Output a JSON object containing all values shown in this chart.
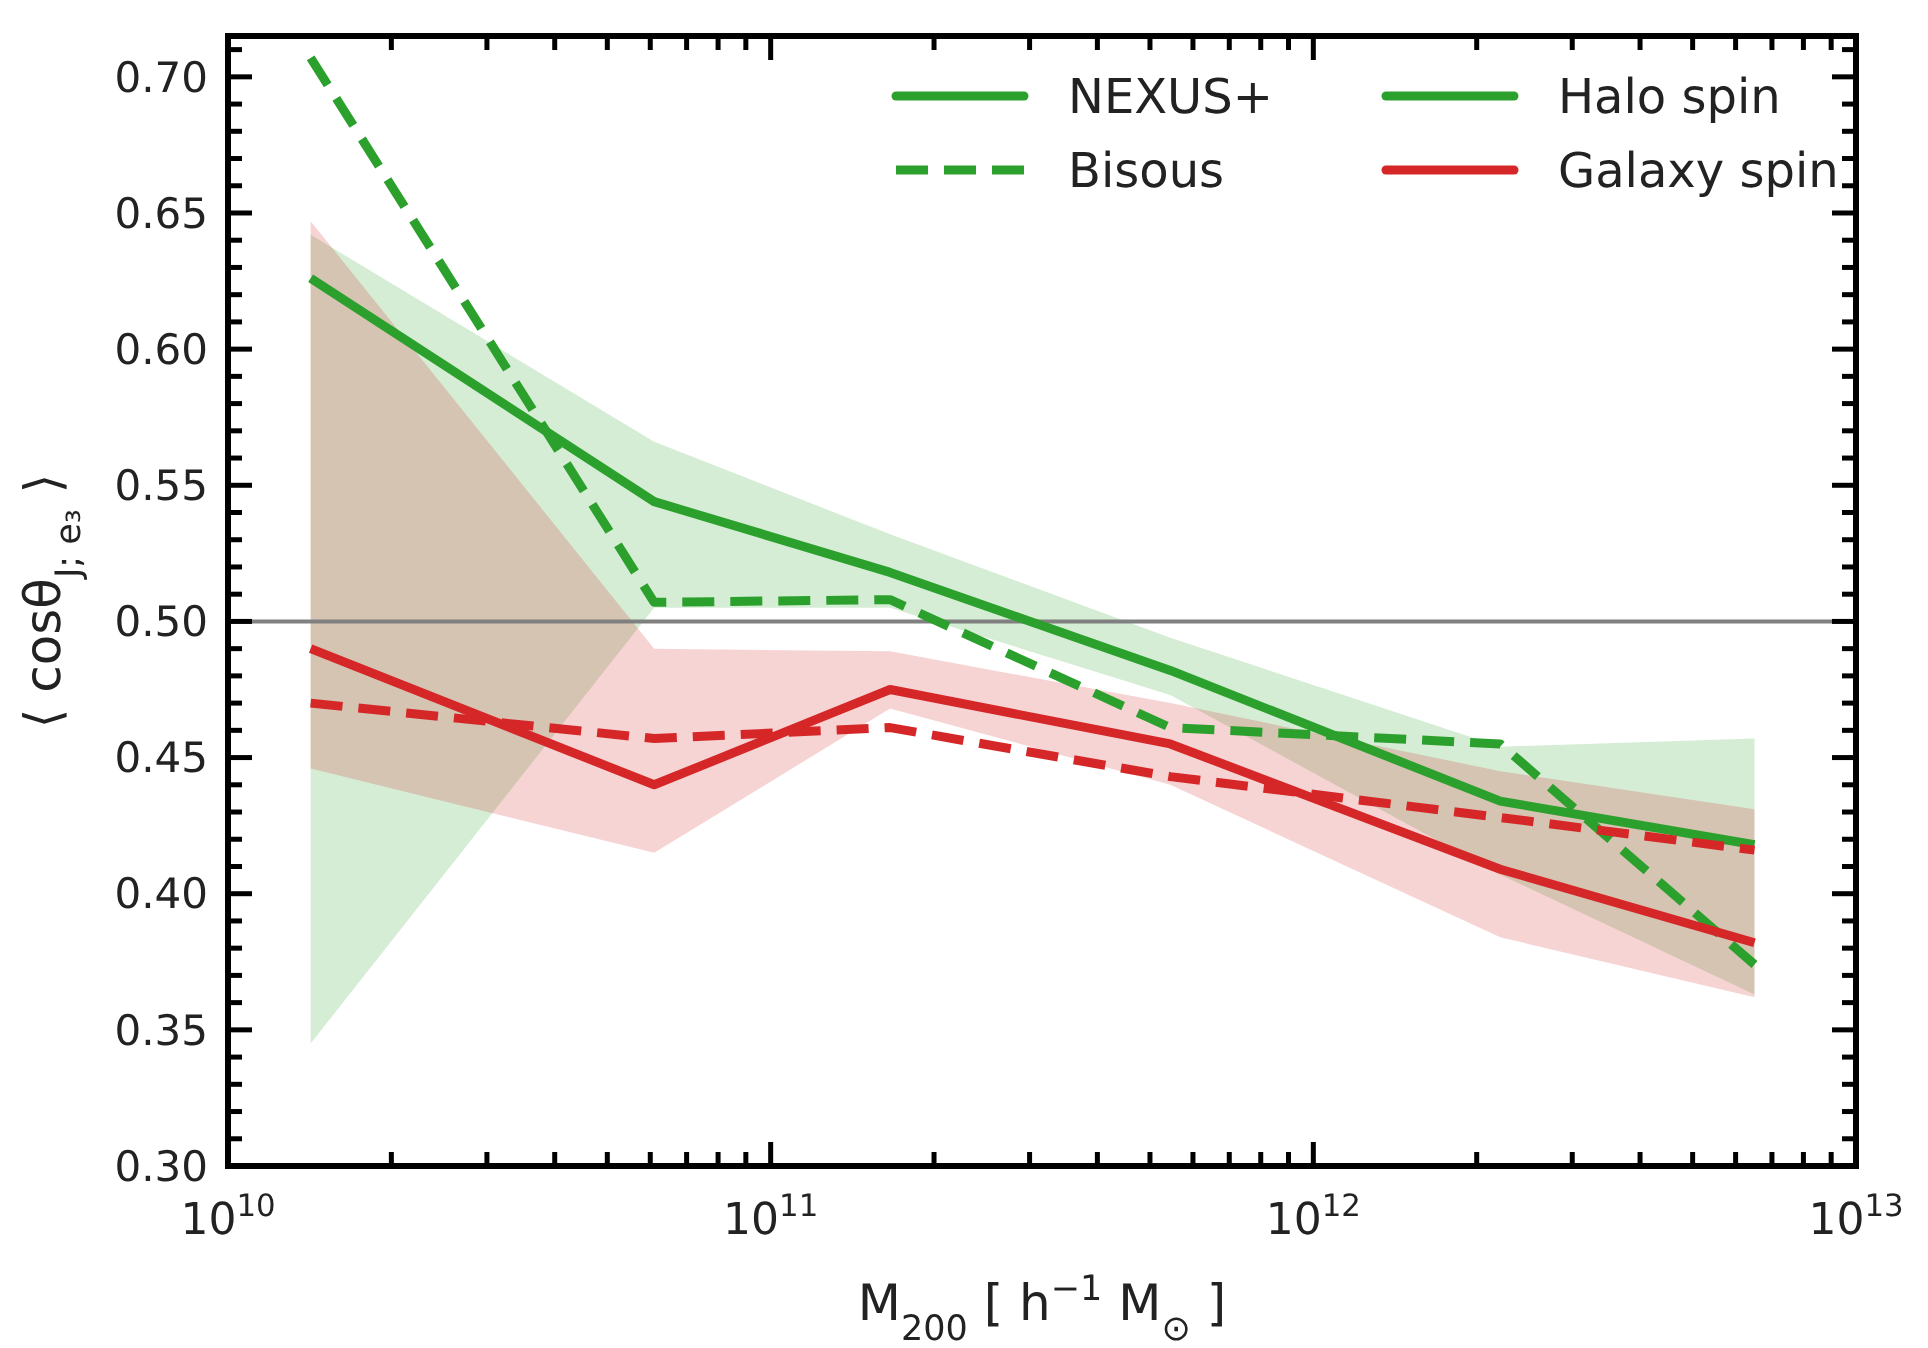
{
  "chart_data": {
    "type": "line",
    "xlabel": "M$_{200}$ [ h$^{−1}$ M$_{⊙}$ ]",
    "ylabel": "⟨ cosθ$_{J; e₃}$ ⟩",
    "log": "x",
    "xlim": [
      10000000000.0,
      10000000000000.0
    ],
    "ylim": [
      0.3,
      0.715
    ],
    "xticks": [
      {
        "value": 10000000000.0,
        "label": "10$^{10}$"
      },
      {
        "value": 20000000000.0,
        "label": null
      },
      {
        "value": 30000000000.0,
        "label": null
      },
      {
        "value": 40000000000.0,
        "label": null
      },
      {
        "value": 50000000000.0,
        "label": null
      },
      {
        "value": 60000000000.0,
        "label": null
      },
      {
        "value": 70000000000.0,
        "label": null
      },
      {
        "value": 80000000000.0,
        "label": null
      },
      {
        "value": 90000000000.0,
        "label": null
      },
      {
        "value": 100000000000.0,
        "label": "10$^{11}$"
      },
      {
        "value": 200000000000.0,
        "label": null
      },
      {
        "value": 300000000000.0,
        "label": null
      },
      {
        "value": 400000000000.0,
        "label": null
      },
      {
        "value": 500000000000.0,
        "label": null
      },
      {
        "value": 600000000000.0,
        "label": null
      },
      {
        "value": 700000000000.0,
        "label": null
      },
      {
        "value": 800000000000.0,
        "label": null
      },
      {
        "value": 900000000000.0,
        "label": null
      },
      {
        "value": 1000000000000.0,
        "label": "10$^{12}$"
      },
      {
        "value": 2000000000000.0,
        "label": null
      },
      {
        "value": 3000000000000.0,
        "label": null
      },
      {
        "value": 4000000000000.0,
        "label": null
      },
      {
        "value": 5000000000000.0,
        "label": null
      },
      {
        "value": 6000000000000.0,
        "label": null
      },
      {
        "value": 7000000000000.0,
        "label": null
      },
      {
        "value": 8000000000000.0,
        "label": null
      },
      {
        "value": 9000000000000.0,
        "label": null
      },
      {
        "value": 10000000000000.0,
        "label": "10$^{13}$"
      }
    ],
    "yticks": [
      {
        "value": 0.3,
        "label": "0.30"
      },
      {
        "value": 0.31,
        "label": null
      },
      {
        "value": 0.32,
        "label": null
      },
      {
        "value": 0.33,
        "label": null
      },
      {
        "value": 0.34,
        "label": null
      },
      {
        "value": 0.35,
        "label": "0.35"
      },
      {
        "value": 0.36,
        "label": null
      },
      {
        "value": 0.37,
        "label": null
      },
      {
        "value": 0.38,
        "label": null
      },
      {
        "value": 0.39,
        "label": null
      },
      {
        "value": 0.4,
        "label": "0.40"
      },
      {
        "value": 0.41,
        "label": null
      },
      {
        "value": 0.42,
        "label": null
      },
      {
        "value": 0.43,
        "label": null
      },
      {
        "value": 0.44,
        "label": null
      },
      {
        "value": 0.45,
        "label": "0.45"
      },
      {
        "value": 0.46,
        "label": null
      },
      {
        "value": 0.47,
        "label": null
      },
      {
        "value": 0.48,
        "label": null
      },
      {
        "value": 0.49,
        "label": null
      },
      {
        "value": 0.5,
        "label": "0.50"
      },
      {
        "value": 0.51,
        "label": null
      },
      {
        "value": 0.52,
        "label": null
      },
      {
        "value": 0.53,
        "label": null
      },
      {
        "value": 0.54,
        "label": null
      },
      {
        "value": 0.55,
        "label": "0.55"
      },
      {
        "value": 0.56,
        "label": null
      },
      {
        "value": 0.57,
        "label": null
      },
      {
        "value": 0.58,
        "label": null
      },
      {
        "value": 0.59,
        "label": null
      },
      {
        "value": 0.6,
        "label": "0.60"
      },
      {
        "value": 0.61,
        "label": null
      },
      {
        "value": 0.62,
        "label": null
      },
      {
        "value": 0.63,
        "label": null
      },
      {
        "value": 0.64,
        "label": null
      },
      {
        "value": 0.65,
        "label": "0.65"
      },
      {
        "value": 0.66,
        "label": null
      },
      {
        "value": 0.67,
        "label": null
      },
      {
        "value": 0.68,
        "label": null
      },
      {
        "value": 0.69,
        "label": null
      },
      {
        "value": 0.7,
        "label": "0.70"
      },
      {
        "value": 0.71,
        "label": null
      }
    ],
    "x": [
      14200000000.0,
      61000000000.0,
      166000000000.0,
      545000000000.0,
      2210000000000.0,
      6500000000000.0
    ],
    "series": [
      {
        "name": "NEXUS+",
        "color": "#2ca02c",
        "line_style": "solid",
        "values": [
          0.626,
          0.544,
          0.518,
          0.482,
          0.434,
          0.418
        ],
        "lower": [
          0.345,
          0.505,
          0.505,
          0.473,
          0.407,
          0.363
        ],
        "upper": [
          0.642,
          0.566,
          0.532,
          0.494,
          0.454,
          0.457
        ]
      },
      {
        "name": "Bisous",
        "color": "#2ca02c",
        "line_style": "dashed",
        "values": [
          0.707,
          0.507,
          0.508,
          0.461,
          0.455,
          0.374
        ]
      },
      {
        "name": "Galaxy spin",
        "color": "#d62728",
        "line_style": "solid",
        "values": [
          0.49,
          0.44,
          0.475,
          0.455,
          0.409,
          0.382
        ],
        "lower": [
          0.446,
          0.415,
          0.468,
          0.44,
          0.384,
          0.362
        ],
        "upper": [
          0.647,
          0.49,
          0.489,
          0.47,
          0.445,
          0.431
        ]
      },
      {
        "color": "#d62728",
        "line_style": "dashed",
        "values": [
          0.47,
          0.457,
          0.461,
          0.443,
          0.428,
          0.416
        ]
      }
    ],
    "ref_lines": [
      {
        "axis": "y",
        "value": 0.5,
        "color": "#808080"
      }
    ],
    "annotations": [
      "Halo spin"
    ],
    "legend": "top right",
    "grid": false
  }
}
